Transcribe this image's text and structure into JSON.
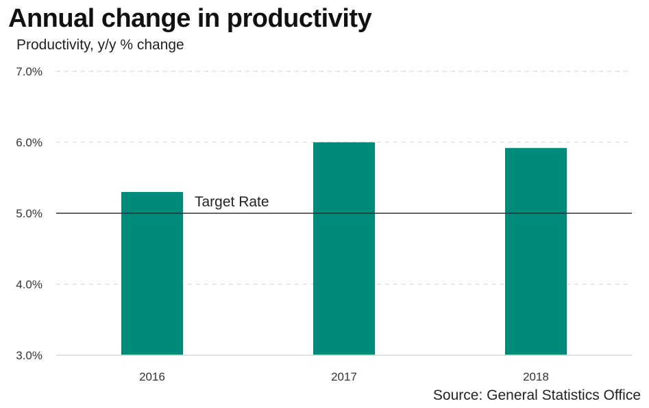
{
  "chart_data": {
    "type": "bar",
    "title": "Annual change in productivity",
    "subtitle": "Productivity,  y/y % change",
    "source": "Source: General Statistics Office",
    "categories": [
      "2016",
      "2017",
      "2018"
    ],
    "values": [
      5.3,
      6.0,
      5.92
    ],
    "ylim": [
      3.0,
      7.0
    ],
    "yticks": [
      3.0,
      4.0,
      5.0,
      6.0,
      7.0
    ],
    "ytick_labels": [
      "3.0%",
      "4.0%",
      "5.0%",
      "6.0%",
      "7.0%"
    ],
    "grid": true,
    "bar_color": "#008a7a",
    "reference_line": {
      "value": 5.0,
      "label": "Target Rate",
      "color": "#333333"
    }
  }
}
